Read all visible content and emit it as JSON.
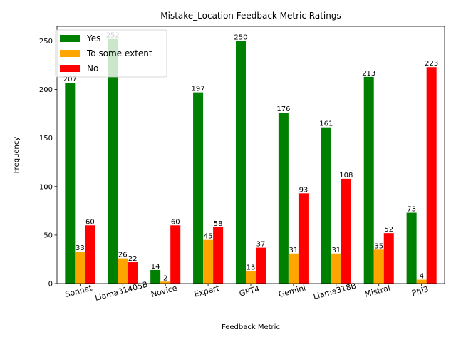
{
  "chart_data": {
    "type": "bar",
    "title": "Mistake_Location Feedback Metric Ratings",
    "xlabel": "Feedback Metric",
    "ylabel": "Frequency",
    "categories": [
      "Sonnet",
      "Llama31405B",
      "Novice",
      "Expert",
      "GPT4",
      "Gemini",
      "Llama318B",
      "Mistral",
      "Phi3"
    ],
    "series": [
      {
        "name": "Yes",
        "color": "#008000",
        "values": [
          207,
          252,
          14,
          197,
          250,
          176,
          161,
          213,
          73
        ]
      },
      {
        "name": "To some extent",
        "color": "#FFA500",
        "values": [
          33,
          26,
          2,
          45,
          13,
          31,
          31,
          35,
          4
        ]
      },
      {
        "name": "No",
        "color": "#FF0000",
        "values": [
          60,
          22,
          60,
          58,
          37,
          93,
          108,
          52,
          223
        ]
      }
    ],
    "ylim": [
      0,
      265
    ],
    "yticks": [
      0,
      50,
      100,
      150,
      200,
      250
    ],
    "grid": false,
    "legend_position": "top-left",
    "x_tick_rotation": 15
  }
}
